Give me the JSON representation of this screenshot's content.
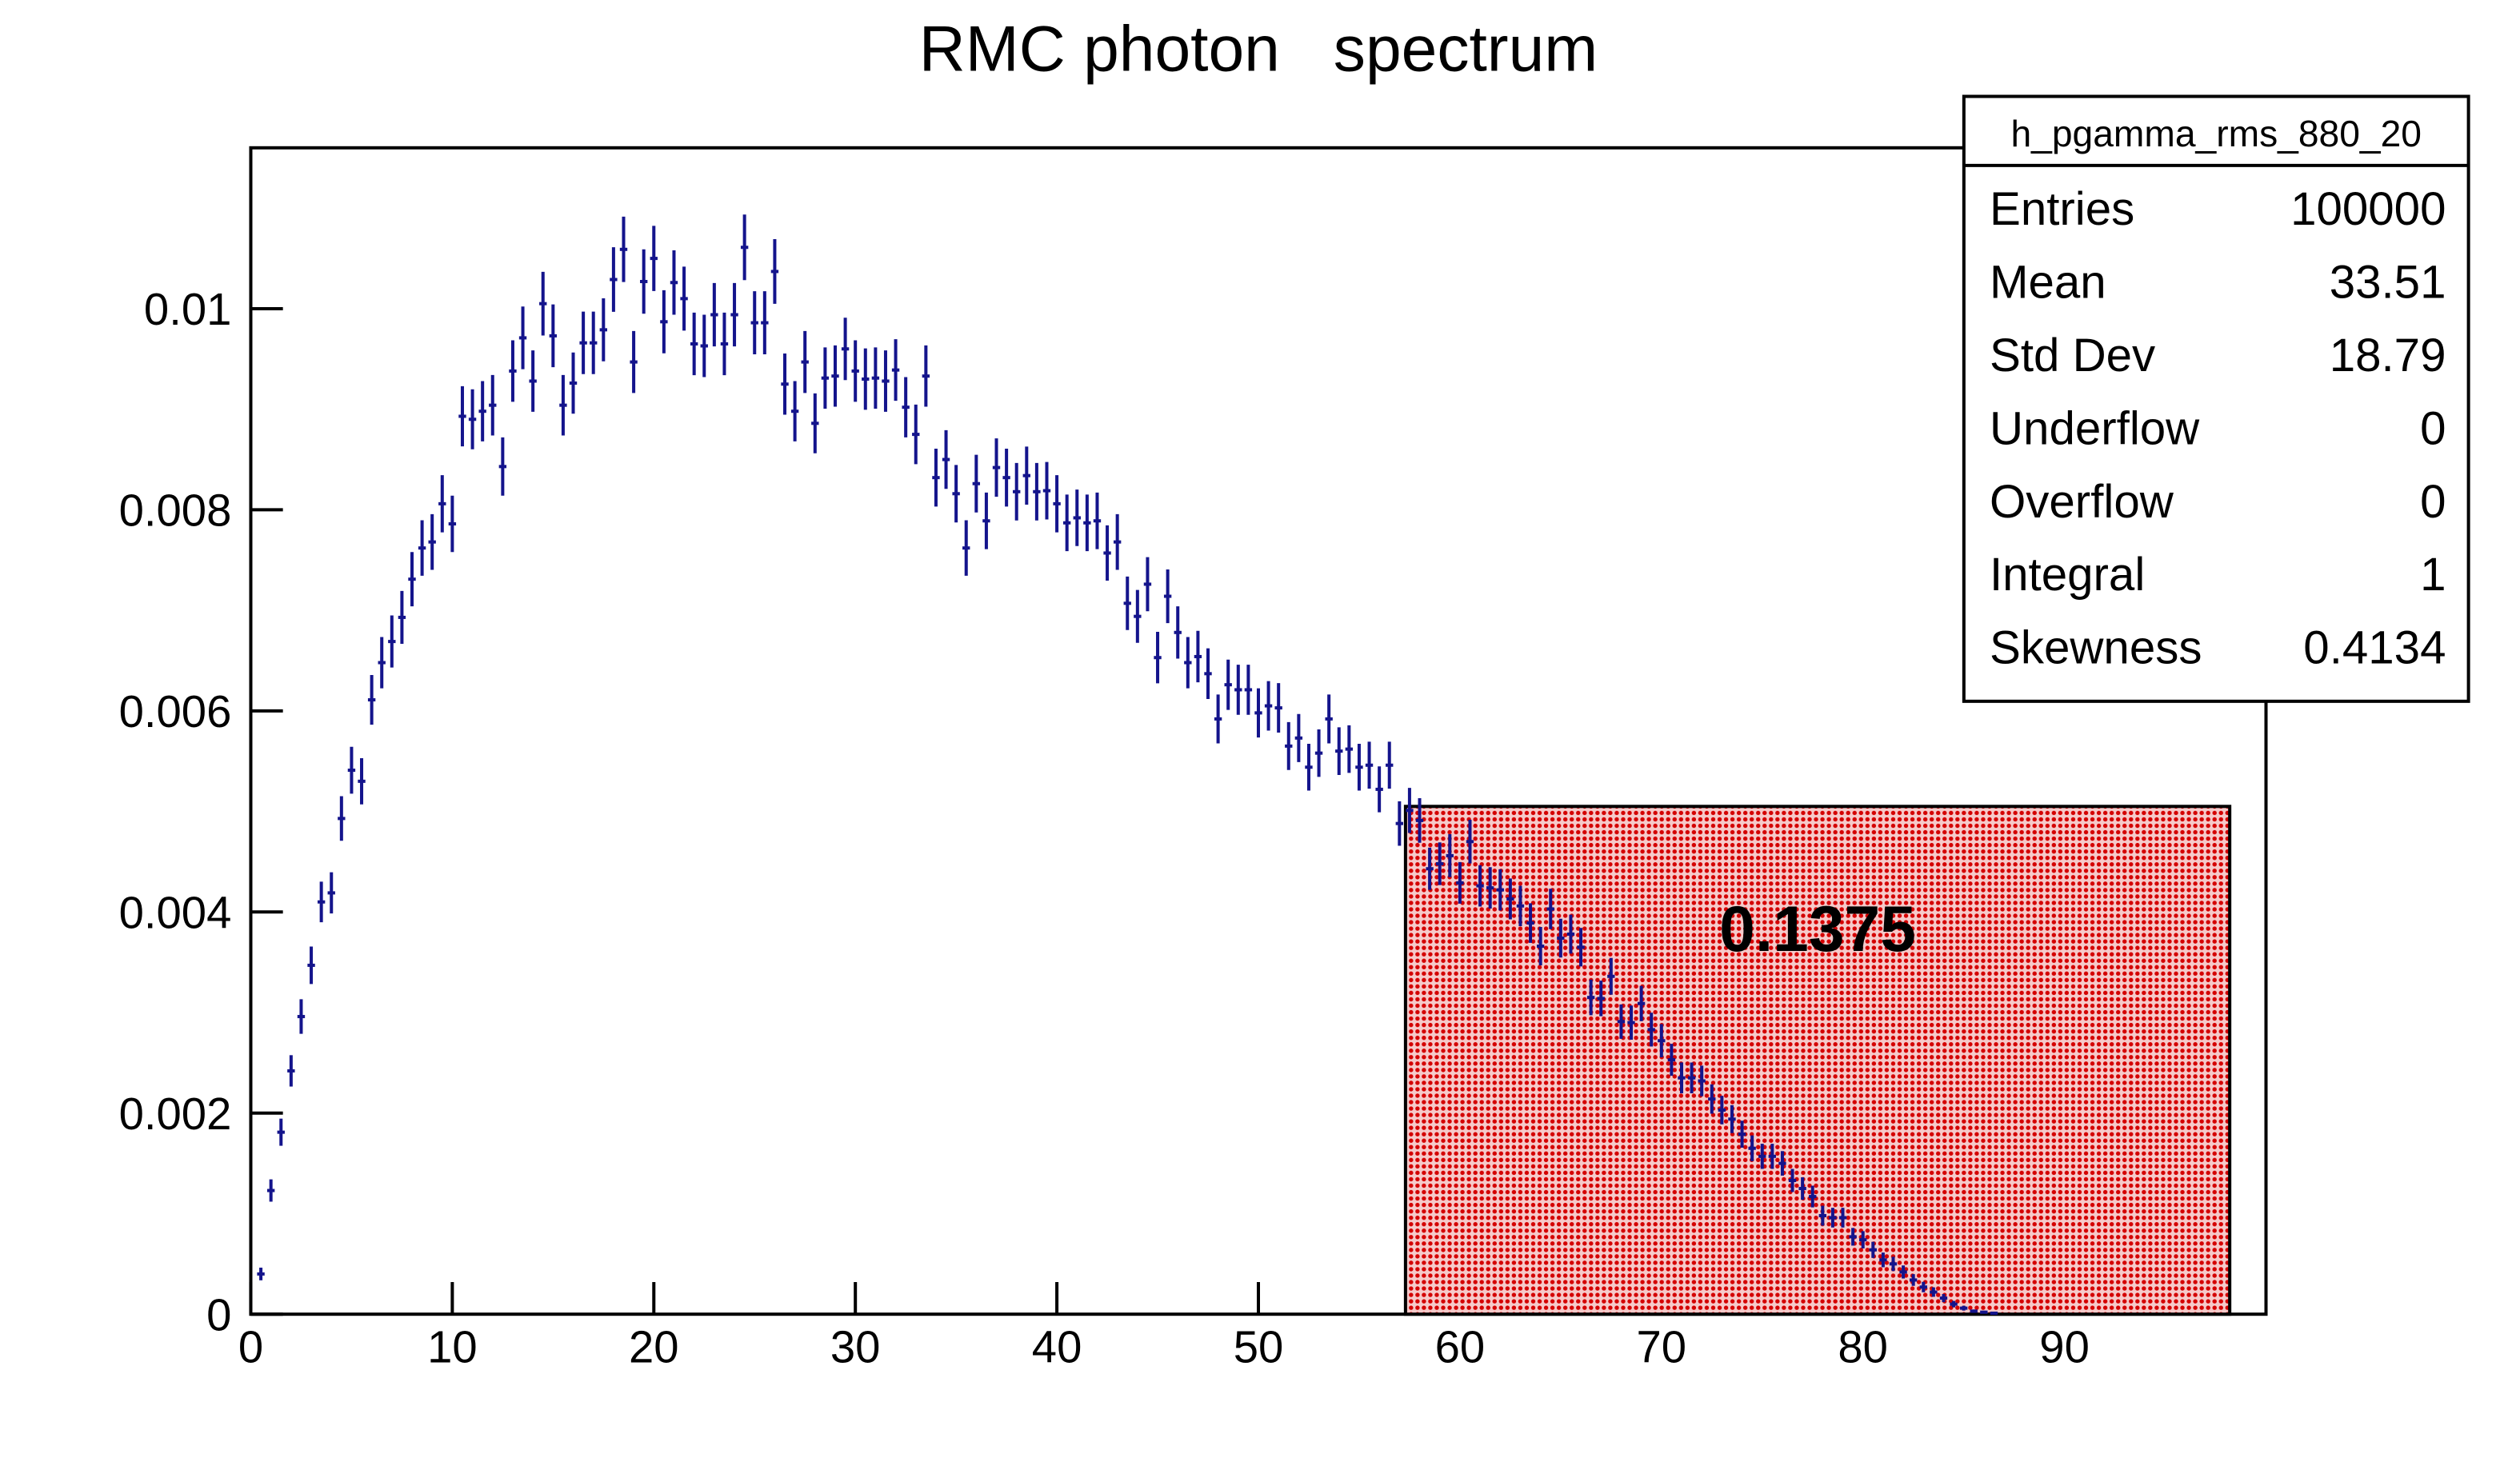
{
  "chart_data": {
    "type": "histogram",
    "title": "RMC photon   spectrum",
    "color": "#14148c",
    "xlim": [
      0,
      100
    ],
    "ylim": [
      0,
      0.0116
    ],
    "xticks": [
      0,
      10,
      20,
      30,
      40,
      50,
      60,
      70,
      80,
      90
    ],
    "yticks": [
      0,
      0.002,
      0.004,
      0.006,
      0.008,
      0.01
    ],
    "bins": [
      0.25,
      0.75,
      1.25,
      1.75,
      2.25,
      2.75,
      3.25,
      3.75,
      4.25,
      4.75,
      5.25,
      5.75,
      6.25,
      6.75,
      7.25,
      7.75,
      8.25,
      8.75,
      9.25,
      9.75,
      10.25,
      10.75,
      11.25,
      11.75,
      12.25,
      12.75,
      13.25,
      13.75,
      14.25,
      14.75,
      15.25,
      15.75,
      16.25,
      16.75,
      17.25,
      17.75,
      18.25,
      18.75,
      19.25,
      19.75,
      20.25,
      20.75,
      21.25,
      21.75,
      22.25,
      22.75,
      23.25,
      23.75,
      24.25,
      24.75,
      25.25,
      25.75,
      26.25,
      26.75,
      27.25,
      27.75,
      28.25,
      28.75,
      29.25,
      29.75,
      30.25,
      30.75,
      31.25,
      31.75,
      32.25,
      32.75,
      33.25,
      33.75,
      34.25,
      34.75,
      35.25,
      35.75,
      36.25,
      36.75,
      37.25,
      37.75,
      38.25,
      38.75,
      39.25,
      39.75,
      40.25,
      40.75,
      41.25,
      41.75,
      42.25,
      42.75,
      43.25,
      43.75,
      44.25,
      44.75,
      45.25,
      45.75,
      46.25,
      46.75,
      47.25,
      47.75,
      48.25,
      48.75,
      49.25,
      49.75,
      50.25,
      50.75,
      51.25,
      51.75,
      52.25,
      52.75,
      53.25,
      53.75,
      54.25,
      54.75,
      55.25,
      55.75,
      56.25,
      56.75,
      57.25,
      57.75,
      58.25,
      58.75,
      59.25,
      59.75,
      60.25,
      60.75,
      61.25,
      61.75,
      62.25,
      62.75,
      63.25,
      63.75,
      64.25,
      64.75,
      65.25,
      65.75,
      66.25,
      66.75,
      67.25,
      67.75,
      68.25,
      68.75,
      69.25,
      69.75,
      70.25,
      70.75,
      71.25,
      71.75,
      72.25,
      72.75,
      73.25,
      73.75,
      74.25,
      74.75,
      75.25,
      75.75,
      76.25,
      76.75,
      77.25,
      77.75,
      78.25,
      78.75,
      79.25,
      79.75,
      80.25,
      80.75,
      81.25,
      81.75,
      82.25,
      82.75,
      83.25,
      83.75,
      84.25,
      84.75,
      85.25,
      85.75,
      86.25,
      86.75
    ],
    "values": [
      0.0004,
      0.00123,
      0.00181,
      0.00242,
      0.00296,
      0.00347,
      0.0041,
      0.00419,
      0.00493,
      0.00541,
      0.0053,
      0.00611,
      0.00648,
      0.00669,
      0.00693,
      0.00731,
      0.00762,
      0.00768,
      0.00806,
      0.00786,
      0.00893,
      0.0089,
      0.00898,
      0.00904,
      0.00843,
      0.00938,
      0.00971,
      0.00928,
      0.01005,
      0.00973,
      0.00904,
      0.00926,
      0.00966,
      0.00966,
      0.00979,
      0.01029,
      0.01059,
      0.00947,
      0.01027,
      0.0105,
      0.00987,
      0.01026,
      0.0101,
      0.00965,
      0.00963,
      0.00994,
      0.00965,
      0.00994,
      0.01061,
      0.00986,
      0.00986,
      0.01037,
      0.00925,
      0.00898,
      0.00947,
      0.00886,
      0.00931,
      0.00933,
      0.0096,
      0.00938,
      0.0093,
      0.00931,
      0.00928,
      0.00939,
      0.00902,
      0.00875,
      0.00933,
      0.00832,
      0.0085,
      0.00816,
      0.00762,
      0.00826,
      0.00789,
      0.00842,
      0.00832,
      0.00818,
      0.00834,
      0.00818,
      0.00819,
      0.00806,
      0.00787,
      0.00792,
      0.00787,
      0.00789,
      0.00757,
      0.00768,
      0.00707,
      0.00694,
      0.00726,
      0.00653,
      0.00714,
      0.00678,
      0.00648,
      0.00654,
      0.00637,
      0.00592,
      0.00626,
      0.00621,
      0.00621,
      0.00598,
      0.00605,
      0.00603,
      0.00565,
      0.00573,
      0.00544,
      0.00558,
      0.00592,
      0.0056,
      0.00562,
      0.00544,
      0.00546,
      0.00522,
      0.00546,
      0.00488,
      0.00501,
      0.00491,
      0.00443,
      0.00448,
      0.00456,
      0.00429,
      0.0047,
      0.00426,
      0.00424,
      0.00422,
      0.00413,
      0.00406,
      0.00389,
      0.00366,
      0.00403,
      0.00374,
      0.00378,
      0.00365,
      0.00315,
      0.00314,
      0.00336,
      0.00291,
      0.0029,
      0.00309,
      0.00283,
      0.00272,
      0.00253,
      0.00235,
      0.00235,
      0.00232,
      0.00214,
      0.00203,
      0.00194,
      0.00179,
      0.00165,
      0.00157,
      0.00157,
      0.0015,
      0.00133,
      0.00125,
      0.00117,
      0.00098,
      0.00096,
      0.00096,
      0.00077,
      0.00074,
      0.00064,
      0.00054,
      0.0005,
      0.00042,
      0.00034,
      0.00027,
      0.00022,
      0.00016,
      0.0001,
      6e-05,
      3e-05,
      2e-05,
      1e-05
    ],
    "errors": [
      6.3e-05,
      0.000111,
      0.000135,
      0.000156,
      0.000172,
      0.000186,
      0.000202,
      0.000205,
      0.000222,
      0.000233,
      0.00023,
      0.000247,
      0.000255,
      0.000259,
      0.000263,
      0.00027,
      0.000276,
      0.000277,
      0.000284,
      0.00028,
      0.000299,
      0.000298,
      0.0003,
      0.000301,
      0.00029,
      0.000306,
      0.000312,
      0.000305,
      0.000317,
      0.000312,
      0.000301,
      0.000304,
      0.000311,
      0.000311,
      0.000313,
      0.000321,
      0.000325,
      0.000308,
      0.00032,
      0.000324,
      0.000314,
      0.00032,
      0.000318,
      0.000311,
      0.00031,
      0.000315,
      0.000311,
      0.000315,
      0.000326,
      0.000314,
      0.000314,
      0.000322,
      0.000304,
      0.0003,
      0.000308,
      0.000298,
      0.000305,
      0.000305,
      0.00031,
      0.000306,
      0.000305,
      0.000305,
      0.000305,
      0.000306,
      0.0003,
      0.000296,
      0.000305,
      0.000288,
      0.000292,
      0.000286,
      0.000276,
      0.000287,
      0.000281,
      0.00029,
      0.000288,
      0.000286,
      0.000289,
      0.000286,
      0.000286,
      0.000284,
      0.000281,
      0.000281,
      0.000281,
      0.000281,
      0.000275,
      0.000277,
      0.000266,
      0.000263,
      0.000269,
      0.000256,
      0.000267,
      0.00026,
      0.000255,
      0.000256,
      0.000252,
      0.000243,
      0.00025,
      0.000249,
      0.000249,
      0.000245,
      0.000246,
      0.000246,
      0.000238,
      0.000239,
      0.000233,
      0.000236,
      0.000243,
      0.000237,
      0.000237,
      0.000233,
      0.000234,
      0.000228,
      0.000234,
      0.000221,
      0.000224,
      0.000222,
      0.00021,
      0.000212,
      0.000214,
      0.000207,
      0.000217,
      0.000206,
      0.000206,
      0.000205,
      0.000203,
      0.000201,
      0.000197,
      0.000191,
      0.000201,
      0.000193,
      0.000194,
      0.000191,
      0.000177,
      0.000177,
      0.000183,
      0.000171,
      0.00017,
      0.000176,
      0.000168,
      0.000165,
      0.000159,
      0.000153,
      0.000153,
      0.000152,
      0.000146,
      0.000142,
      0.000139,
      0.000134,
      0.000128,
      0.000125,
      0.000125,
      0.000122,
      0.000115,
      0.000112,
      0.000108,
      9.9e-05,
      9.8e-05,
      9.8e-05,
      8.8e-05,
      8.6e-05,
      8e-05,
      7.3e-05,
      7.1e-05,
      6.5e-05,
      5.8e-05,
      5.2e-05,
      4.7e-05,
      4e-05,
      3.2e-05,
      2.4e-05,
      1.7e-05,
      1.4e-05,
      1e-05
    ],
    "highlight": {
      "xlim": [
        57.3,
        98.2
      ],
      "ymax": 0.00505,
      "label": 0.1375,
      "color": "#d40000"
    },
    "stats": {
      "name": "h_pgamma_rms_880_20",
      "rows": [
        [
          "Entries",
          100000
        ],
        [
          "Mean",
          33.51
        ],
        [
          "Std Dev",
          18.79
        ],
        [
          "Underflow",
          0
        ],
        [
          "Overflow",
          0
        ],
        [
          "Integral",
          1
        ],
        [
          "Skewness",
          0.4134
        ]
      ]
    }
  }
}
